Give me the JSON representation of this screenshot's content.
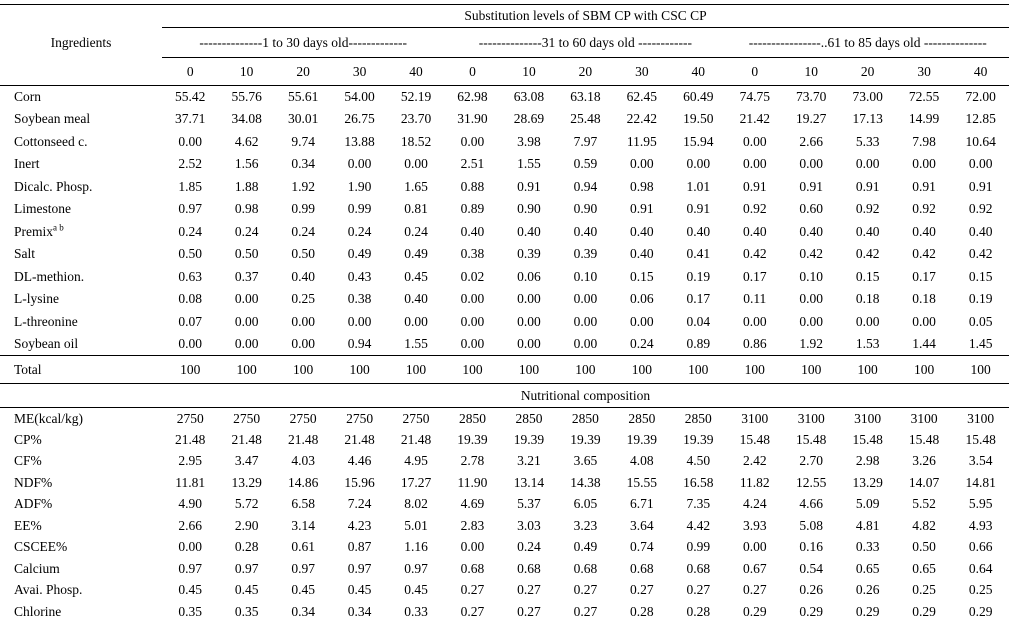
{
  "table": {
    "title": "Substitution levels of SBM CP with CSC CP",
    "row_header": "Ingredients",
    "groups": [
      {
        "label": "--------------1 to 30 days old-------------",
        "columns": [
          "0",
          "10",
          "20",
          "30",
          "40"
        ]
      },
      {
        "label": "--------------31 to 60 days old ------------",
        "columns": [
          "0",
          "10",
          "20",
          "30",
          "40"
        ]
      },
      {
        "label": "----------------..61 to 85 days old --------------",
        "columns": [
          "0",
          "10",
          "20",
          "30",
          "40"
        ]
      }
    ],
    "ingredient_rows": [
      {
        "label": "Corn",
        "values": [
          "55.42",
          "55.76",
          "55.61",
          "54.00",
          "52.19",
          "62.98",
          "63.08",
          "63.18",
          "62.45",
          "60.49",
          "74.75",
          "73.70",
          "73.00",
          "72.55",
          "72.00"
        ]
      },
      {
        "label": "Soybean meal",
        "values": [
          "37.71",
          "34.08",
          "30.01",
          "26.75",
          "23.70",
          "31.90",
          "28.69",
          "25.48",
          "22.42",
          "19.50",
          "21.42",
          "19.27",
          "17.13",
          "14.99",
          "12.85"
        ]
      },
      {
        "label": "Cottonseed c.",
        "values": [
          "0.00",
          "4.62",
          "9.74",
          "13.88",
          "18.52",
          "0.00",
          "3.98",
          "7.97",
          "11.95",
          "15.94",
          "0.00",
          "2.66",
          "5.33",
          "7.98",
          "10.64"
        ]
      },
      {
        "label": "Inert",
        "values": [
          "2.52",
          "1.56",
          "0.34",
          "0.00",
          "0.00",
          "2.51",
          "1.55",
          "0.59",
          "0.00",
          "0.00",
          "0.00",
          "0.00",
          "0.00",
          "0.00",
          "0.00"
        ]
      },
      {
        "label": "Dicalc. Phosp.",
        "values": [
          "1.85",
          "1.88",
          "1.92",
          "1.90",
          "1.65",
          "0.88",
          "0.91",
          "0.94",
          "0.98",
          "1.01",
          "0.91",
          "0.91",
          "0.91",
          "0.91",
          "0.91"
        ]
      },
      {
        "label": "Limestone",
        "values": [
          "0.97",
          "0.98",
          "0.99",
          "0.99",
          "0.81",
          "0.89",
          "0.90",
          "0.90",
          "0.91",
          "0.91",
          "0.92",
          "0.60",
          "0.92",
          "0.92",
          "0.92"
        ]
      },
      {
        "label": "Premix",
        "sup": "a b",
        "values": [
          "0.24",
          "0.24",
          "0.24",
          "0.24",
          "0.24",
          "0.40",
          "0.40",
          "0.40",
          "0.40",
          "0.40",
          "0.40",
          "0.40",
          "0.40",
          "0.40",
          "0.40"
        ]
      },
      {
        "label": "Salt",
        "values": [
          "0.50",
          "0.50",
          "0.50",
          "0.49",
          "0.49",
          "0.38",
          "0.39",
          "0.39",
          "0.40",
          "0.41",
          "0.42",
          "0.42",
          "0.42",
          "0.42",
          "0.42"
        ]
      },
      {
        "label": "DL-methion.",
        "values": [
          "0.63",
          "0.37",
          "0.40",
          "0.43",
          "0.45",
          "0.02",
          "0.06",
          "0.10",
          "0.15",
          "0.19",
          "0.17",
          "0.10",
          "0.15",
          "0.17",
          "0.15"
        ]
      },
      {
        "label": "L-lysine",
        "values": [
          "0.08",
          "0.00",
          "0.25",
          "0.38",
          "0.40",
          "0.00",
          "0.00",
          "0.00",
          "0.06",
          "0.17",
          "0.11",
          "0.00",
          "0.18",
          "0.18",
          "0.19"
        ]
      },
      {
        "label": "L-threonine",
        "values": [
          "0.07",
          "0.00",
          "0.00",
          "0.00",
          "0.00",
          "0.00",
          "0.00",
          "0.00",
          "0.00",
          "0.04",
          "0.00",
          "0.00",
          "0.00",
          "0.00",
          "0.05"
        ]
      },
      {
        "label": "Soybean oil",
        "values": [
          "0.00",
          "0.00",
          "0.00",
          "0.94",
          "1.55",
          "0.00",
          "0.00",
          "0.00",
          "0.24",
          "0.89",
          "0.86",
          "1.92",
          "1.53",
          "1.44",
          "1.45"
        ]
      }
    ],
    "total_row": {
      "label": "Total",
      "values": [
        "100",
        "100",
        "100",
        "100",
        "100",
        "100",
        "100",
        "100",
        "100",
        "100",
        "100",
        "100",
        "100",
        "100",
        "100"
      ]
    },
    "section2_title": "Nutritional composition",
    "nutrition_rows": [
      {
        "label": "ME(kcal/kg)",
        "values": [
          "2750",
          "2750",
          "2750",
          "2750",
          "2750",
          "2850",
          "2850",
          "2850",
          "2850",
          "2850",
          "3100",
          "3100",
          "3100",
          "3100",
          "3100"
        ]
      },
      {
        "label": "CP%",
        "values": [
          "21.48",
          "21.48",
          "21.48",
          "21.48",
          "21.48",
          "19.39",
          "19.39",
          "19.39",
          "19.39",
          "19.39",
          "15.48",
          "15.48",
          "15.48",
          "15.48",
          "15.48"
        ]
      },
      {
        "label": "CF%",
        "values": [
          "2.95",
          "3.47",
          "4.03",
          "4.46",
          "4.95",
          "2.78",
          "3.21",
          "3.65",
          "4.08",
          "4.50",
          "2.42",
          "2.70",
          "2.98",
          "3.26",
          "3.54"
        ]
      },
      {
        "label": "NDF%",
        "values": [
          "11.81",
          "13.29",
          "14.86",
          "15.96",
          "17.27",
          "11.90",
          "13.14",
          "14.38",
          "15.55",
          "16.58",
          "11.82",
          "12.55",
          "13.29",
          "14.07",
          "14.81"
        ]
      },
      {
        "label": "ADF%",
        "values": [
          "4.90",
          "5.72",
          "6.58",
          "7.24",
          "8.02",
          "4.69",
          "5.37",
          "6.05",
          "6.71",
          "7.35",
          "4.24",
          "4.66",
          "5.09",
          "5.52",
          "5.95"
        ]
      },
      {
        "label": "EE%",
        "values": [
          "2.66",
          "2.90",
          "3.14",
          "4.23",
          "5.01",
          "2.83",
          "3.03",
          "3.23",
          "3.64",
          "4.42",
          "3.93",
          "5.08",
          "4.81",
          "4.82",
          "4.93"
        ]
      },
      {
        "label": "CSCEE%",
        "values": [
          "0.00",
          "0.28",
          "0.61",
          "0.87",
          "1.16",
          "0.00",
          "0.24",
          "0.49",
          "0.74",
          "0.99",
          "0.00",
          "0.16",
          "0.33",
          "0.50",
          "0.66"
        ]
      },
      {
        "label": "Calcium",
        "values": [
          "0.97",
          "0.97",
          "0.97",
          "0.97",
          "0.97",
          "0.68",
          "0.68",
          "0.68",
          "0.68",
          "0.68",
          "0.67",
          "0.54",
          "0.65",
          "0.65",
          "0.64"
        ]
      },
      {
        "label": "Avai. Phosp.",
        "values": [
          "0.45",
          "0.45",
          "0.45",
          "0.45",
          "0.45",
          "0.27",
          "0.27",
          "0.27",
          "0.27",
          "0.27",
          "0.27",
          "0.26",
          "0.26",
          "0.25",
          "0.25"
        ]
      },
      {
        "label": "Chlorine",
        "values": [
          "0.35",
          "0.35",
          "0.34",
          "0.34",
          "0.33",
          "0.27",
          "0.27",
          "0.27",
          "0.28",
          "0.28",
          "0.29",
          "0.29",
          "0.29",
          "0.29",
          "0.29"
        ]
      }
    ]
  }
}
